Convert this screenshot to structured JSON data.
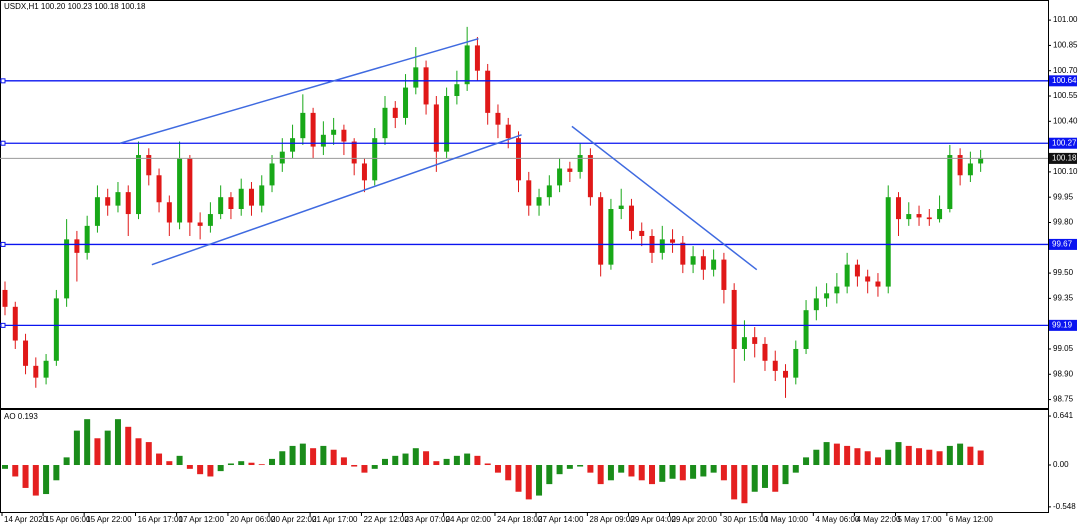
{
  "chart_data": [
    {
      "type": "candlestick",
      "title": "USDX,H1  100.20 100.23 100.18 100.18",
      "categories": [
        "14 Apr 2020",
        null,
        null,
        null,
        "15 Apr 06:00",
        null,
        null,
        null,
        "15 Apr 22:00",
        null,
        null,
        null,
        null,
        "16 Apr 17:00",
        null,
        null,
        null,
        "17 Apr 12:00",
        null,
        null,
        null,
        null,
        "20 Apr 06:00",
        null,
        null,
        null,
        "20 Apr 22:00",
        null,
        null,
        null,
        "21 Apr 17:00",
        null,
        null,
        null,
        null,
        "22 Apr 12:00",
        null,
        null,
        null,
        "23 Apr 07:00",
        null,
        null,
        null,
        "24 Apr 02:00",
        null,
        null,
        null,
        null,
        "24 Apr 18:00",
        null,
        null,
        null,
        "27 Apr 14:00",
        null,
        null,
        null,
        null,
        "28 Apr 09:00",
        null,
        null,
        null,
        "29 Apr 04:00",
        null,
        null,
        null,
        "29 Apr 20:00",
        null,
        null,
        null,
        null,
        "30 Apr 15:00",
        null,
        null,
        null,
        "1 May 10:00",
        null,
        null,
        null,
        null,
        "4 May 06:00",
        null,
        null,
        null,
        "4 May 22:00",
        null,
        null,
        null,
        "5 May 17:00",
        null,
        null,
        null,
        null,
        "6 May 12:00",
        null,
        null,
        null
      ],
      "open": [
        99.4,
        99.3,
        99.1,
        98.95,
        98.88,
        98.98,
        99.35,
        99.7,
        99.62,
        99.78,
        99.95,
        99.9,
        99.98,
        99.85,
        100.2,
        100.08,
        99.92,
        99.8,
        100.18,
        99.8,
        99.78,
        99.85,
        99.95,
        99.88,
        100.0,
        99.9,
        100.02,
        100.15,
        100.22,
        100.3,
        100.45,
        100.25,
        100.32,
        100.35,
        100.28,
        100.15,
        100.05,
        100.3,
        100.48,
        100.42,
        100.6,
        100.72,
        100.5,
        100.22,
        100.55,
        100.62,
        100.85,
        100.7,
        100.45,
        100.38,
        100.3,
        100.05,
        99.9,
        99.95,
        100.02,
        100.12,
        100.1,
        100.2,
        99.95,
        99.55,
        99.88,
        99.9,
        99.75,
        99.72,
        99.62,
        99.7,
        99.68,
        99.55,
        99.6,
        99.52,
        99.58,
        99.4,
        99.05,
        99.12,
        99.08,
        98.98,
        98.92,
        98.88,
        99.05,
        99.28,
        99.35,
        99.38,
        99.42,
        99.55,
        99.48,
        99.45,
        99.42,
        99.95,
        99.82,
        99.85,
        99.83,
        99.82,
        99.88,
        100.2,
        100.08,
        100.15
      ],
      "high": [
        99.45,
        99.33,
        99.14,
        99.0,
        99.02,
        99.4,
        99.82,
        99.75,
        99.84,
        100.02,
        100.0,
        100.04,
        100.02,
        100.28,
        100.24,
        100.12,
        99.96,
        100.28,
        100.2,
        99.86,
        99.92,
        100.02,
        99.98,
        100.06,
        100.04,
        100.08,
        100.2,
        100.3,
        100.38,
        100.56,
        100.48,
        100.4,
        100.42,
        100.38,
        100.3,
        100.18,
        100.36,
        100.55,
        100.52,
        100.68,
        100.84,
        100.76,
        100.55,
        100.6,
        100.7,
        100.96,
        100.9,
        100.74,
        100.5,
        100.42,
        100.34,
        100.1,
        100.0,
        100.08,
        100.18,
        100.16,
        100.27,
        100.24,
        99.98,
        99.94,
        100.0,
        99.94,
        99.8,
        99.76,
        99.78,
        99.76,
        99.72,
        99.66,
        99.64,
        99.64,
        99.62,
        99.44,
        99.22,
        99.18,
        99.12,
        99.04,
        98.96,
        99.1,
        99.34,
        99.42,
        99.44,
        99.5,
        99.62,
        99.58,
        99.52,
        99.5,
        100.02,
        99.98,
        99.92,
        99.9,
        99.88,
        99.96,
        100.26,
        100.24,
        100.22,
        100.23
      ],
      "low": [
        99.25,
        99.05,
        98.9,
        98.82,
        98.84,
        98.95,
        99.3,
        99.45,
        99.58,
        99.74,
        99.84,
        99.86,
        99.72,
        99.82,
        100.02,
        99.86,
        99.72,
        99.76,
        99.72,
        99.7,
        99.74,
        99.82,
        99.82,
        99.84,
        99.84,
        99.86,
        99.98,
        100.1,
        100.18,
        100.26,
        100.18,
        100.2,
        100.26,
        100.2,
        100.08,
        99.98,
        100.02,
        100.26,
        100.36,
        100.38,
        100.56,
        100.44,
        100.1,
        100.18,
        100.5,
        100.58,
        100.64,
        100.38,
        100.3,
        100.24,
        99.98,
        99.84,
        99.84,
        99.9,
        99.98,
        100.04,
        100.06,
        99.9,
        99.48,
        99.52,
        99.82,
        99.7,
        99.66,
        99.56,
        99.58,
        99.62,
        99.5,
        99.5,
        99.46,
        99.48,
        99.32,
        98.85,
        98.98,
        99.0,
        98.92,
        98.86,
        98.76,
        98.84,
        99.02,
        99.22,
        99.3,
        99.32,
        99.38,
        99.42,
        99.38,
        99.36,
        99.38,
        99.72,
        99.78,
        99.78,
        99.78,
        99.8,
        99.86,
        100.02,
        100.04,
        100.1
      ],
      "close": [
        99.3,
        99.1,
        98.95,
        98.88,
        98.98,
        99.35,
        99.7,
        99.62,
        99.78,
        99.95,
        99.9,
        99.98,
        99.85,
        100.2,
        100.08,
        99.92,
        99.8,
        100.18,
        99.8,
        99.78,
        99.85,
        99.95,
        99.88,
        100.0,
        99.9,
        100.02,
        100.15,
        100.22,
        100.3,
        100.45,
        100.25,
        100.32,
        100.35,
        100.28,
        100.15,
        100.05,
        100.3,
        100.48,
        100.42,
        100.6,
        100.72,
        100.5,
        100.22,
        100.55,
        100.62,
        100.85,
        100.7,
        100.45,
        100.38,
        100.3,
        100.05,
        99.9,
        99.95,
        100.02,
        100.12,
        100.1,
        100.2,
        99.95,
        99.55,
        99.88,
        99.9,
        99.75,
        99.72,
        99.62,
        99.7,
        99.68,
        99.55,
        99.6,
        99.52,
        99.58,
        99.4,
        99.05,
        99.12,
        99.08,
        98.98,
        98.92,
        98.88,
        99.05,
        99.28,
        99.35,
        99.38,
        99.42,
        99.55,
        99.48,
        99.45,
        99.42,
        99.95,
        99.82,
        99.85,
        99.83,
        99.82,
        99.88,
        100.2,
        100.08,
        100.15,
        100.18
      ],
      "up_color": "#18a818",
      "down_color": "#e01818",
      "ylim": [
        98.7,
        101.06
      ],
      "yticks": [
        {
          "value": 101,
          "label": "101.00"
        },
        100.85,
        {
          "value": 100.7,
          "label": "100.70"
        },
        100.55,
        {
          "value": 100.4,
          "label": "100.40"
        },
        {
          "value": 100.1,
          "label": "100.10"
        },
        99.95,
        {
          "value": 99.8,
          "label": "99.80"
        },
        {
          "value": 99.5,
          "label": "99.50"
        },
        99.35,
        99.05,
        {
          "value": 98.9,
          "label": "98.90"
        },
        98.75
      ],
      "levels": [
        100.64,
        100.27,
        99.67,
        99.19
      ],
      "level_color": "#0a14f0",
      "last_price": 100.18,
      "trendlines": [
        {
          "x": [
            11.2,
            46.1
          ],
          "y": [
            100.27,
            100.89
          ]
        },
        {
          "x": [
            14.3,
            50.3
          ],
          "y": [
            99.55,
            100.32
          ]
        },
        {
          "x": [
            55.2,
            73.2
          ],
          "y": [
            100.37,
            99.52
          ]
        }
      ],
      "trendline_color": "#3f6ae0"
    },
    {
      "type": "bar",
      "title": "AO 0.193",
      "values": [
        -0.05,
        -0.15,
        -0.3,
        -0.4,
        -0.38,
        -0.2,
        0.1,
        0.45,
        0.6,
        0.35,
        0.45,
        0.6,
        0.5,
        0.35,
        0.3,
        0.15,
        0.05,
        0.12,
        -0.05,
        -0.12,
        -0.15,
        -0.08,
        0.02,
        0.05,
        0.03,
        0.01,
        0.08,
        0.18,
        0.25,
        0.28,
        0.22,
        0.25,
        0.2,
        0.1,
        -0.02,
        -0.1,
        -0.05,
        0.08,
        0.12,
        0.15,
        0.22,
        0.18,
        0.05,
        0.08,
        0.12,
        0.15,
        0.12,
        0.02,
        -0.1,
        -0.2,
        -0.35,
        -0.45,
        -0.4,
        -0.25,
        -0.12,
        -0.05,
        -0.02,
        -0.1,
        -0.25,
        -0.2,
        -0.1,
        -0.15,
        -0.2,
        -0.25,
        -0.22,
        -0.18,
        -0.2,
        -0.18,
        -0.15,
        -0.1,
        -0.2,
        -0.45,
        -0.5,
        -0.35,
        -0.3,
        -0.35,
        -0.25,
        -0.1,
        0.1,
        0.2,
        0.3,
        0.28,
        0.25,
        0.22,
        0.18,
        0.1,
        0.2,
        0.3,
        0.25,
        0.22,
        0.2,
        0.18,
        0.25,
        0.28,
        0.24,
        0.19
      ],
      "up_color": "#1a8c1a",
      "down_color": "#e42020",
      "ylim": [
        -0.615,
        0.72
      ],
      "yticks": [
        0.641,
        {
          "value": 0,
          "label": "0.00"
        },
        -0.548
      ]
    }
  ]
}
